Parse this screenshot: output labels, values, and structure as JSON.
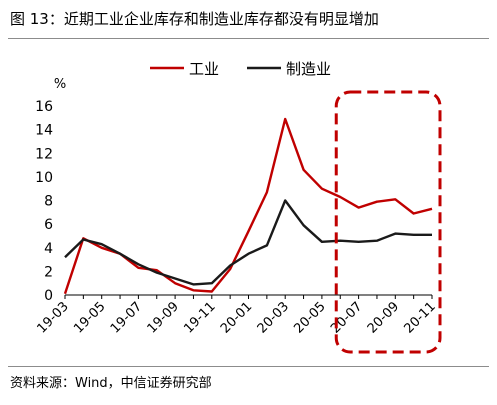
{
  "title": "图 13：近期工业企业库存和制造业库存都没有明显增加",
  "source": "资料来源：Wind，中信证券研究部",
  "chart_data": {
    "type": "line",
    "y_unit": "%",
    "ylim": [
      0,
      16
    ],
    "y_ticks": [
      "0",
      "2",
      "4",
      "6",
      "8",
      "10",
      "12",
      "14",
      "16"
    ],
    "x": [
      "19-03",
      "19-04",
      "19-05",
      "19-06",
      "19-07",
      "19-08",
      "19-09",
      "19-10",
      "19-11",
      "19-12",
      "20-01",
      "20-02",
      "20-03",
      "20-04",
      "20-05",
      "20-06",
      "20-07",
      "20-08",
      "20-09",
      "20-10",
      "20-11"
    ],
    "x_tick_labels": [
      "19-03",
      "19-05",
      "19-07",
      "19-09",
      "19-11",
      "20-01",
      "20-03",
      "20-05",
      "20-07",
      "20-09",
      "20-11"
    ],
    "legend_position": "top",
    "grid": false,
    "series": [
      {
        "name": "工业",
        "color": "#c00000",
        "values": [
          0.1,
          4.8,
          4.0,
          3.5,
          2.3,
          2.1,
          1.0,
          0.4,
          0.3,
          2.2,
          5.4,
          8.7,
          14.9,
          10.6,
          9.0,
          8.3,
          7.4,
          7.9,
          8.1,
          6.9,
          7.3
        ]
      },
      {
        "name": "制造业",
        "color": "#1a1a1a",
        "values": [
          3.2,
          4.7,
          4.3,
          3.5,
          2.6,
          1.9,
          1.4,
          0.9,
          1.0,
          2.5,
          3.5,
          4.2,
          8.0,
          5.9,
          4.5,
          4.6,
          4.5,
          4.6,
          5.2,
          5.1,
          5.1
        ]
      }
    ],
    "highlight_box": {
      "from": "20-06",
      "to": "20-11",
      "color": "#c00000",
      "style": "dashed"
    }
  }
}
